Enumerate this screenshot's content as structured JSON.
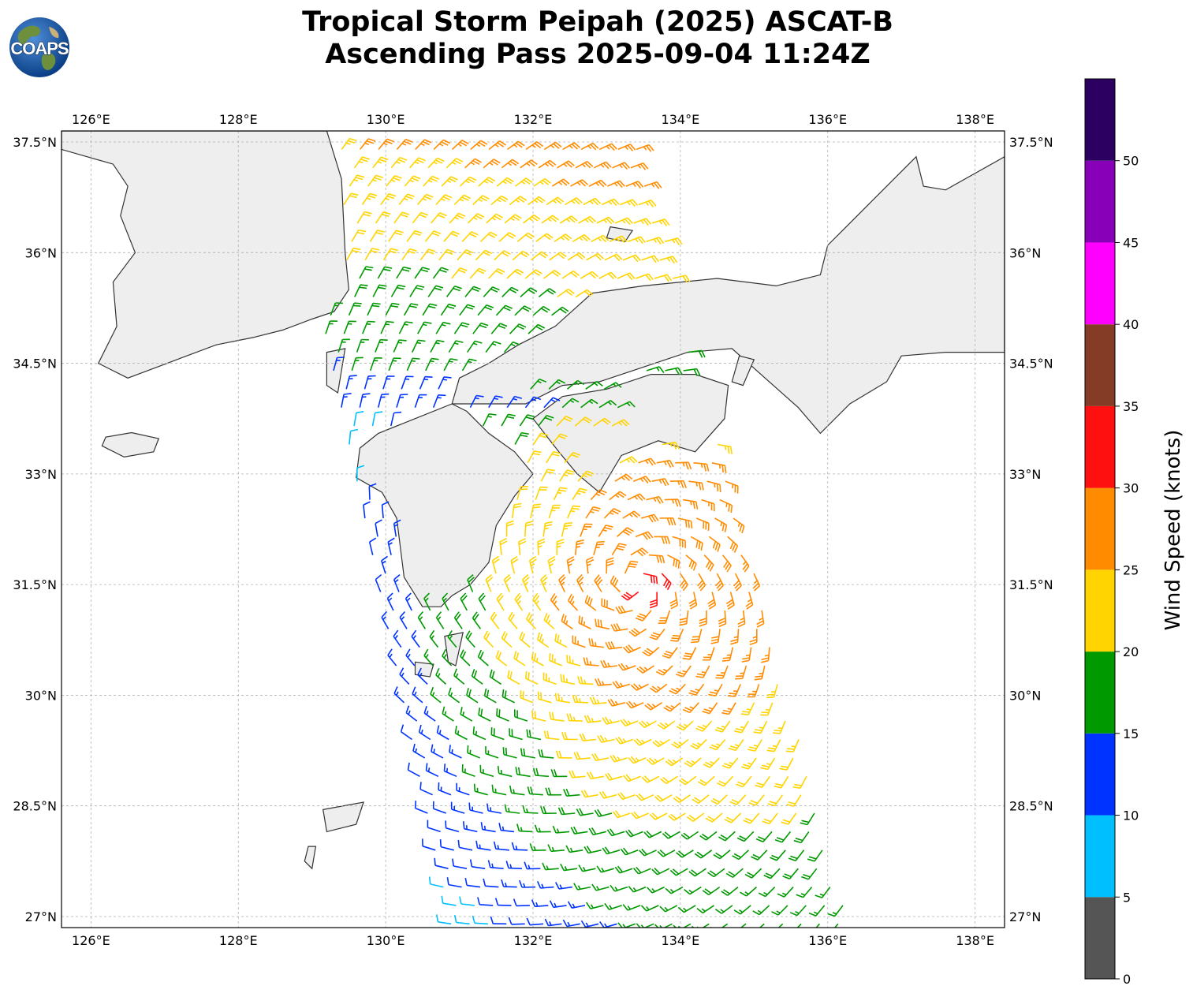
{
  "title": {
    "line1": "Tropical Storm Peipah (2025) ASCAT-B",
    "line2": "Ascending Pass 2025-09-04 11:24Z"
  },
  "logo": {
    "text": "COAPS",
    "icon": "globe-icon"
  },
  "map": {
    "lon_range": [
      125.6,
      138.4
    ],
    "lat_range": [
      26.85,
      37.65
    ],
    "lon_ticks": [
      "126°E",
      "128°E",
      "130°E",
      "132°E",
      "134°E",
      "136°E",
      "138°E"
    ],
    "lat_ticks": [
      "37.5°N",
      "36°N",
      "34.5°N",
      "33°N",
      "31.5°N",
      "30°N",
      "28.5°N",
      "27°N"
    ],
    "grid": true,
    "land_color": "#eeeeee",
    "coast_color": "#333333"
  },
  "colorbar": {
    "label": "Wind Speed (knots)",
    "ticks": [
      "0",
      "5",
      "10",
      "15",
      "20",
      "25",
      "30",
      "35",
      "40",
      "45",
      "50"
    ],
    "bins": [
      {
        "from": 0,
        "to": 5,
        "color": "#555555"
      },
      {
        "from": 5,
        "to": 10,
        "color": "#00bfff"
      },
      {
        "from": 10,
        "to": 15,
        "color": "#0033ff"
      },
      {
        "from": 15,
        "to": 20,
        "color": "#009900"
      },
      {
        "from": 20,
        "to": 25,
        "color": "#ffd400"
      },
      {
        "from": 25,
        "to": 30,
        "color": "#ff8c00"
      },
      {
        "from": 30,
        "to": 35,
        "color": "#ff1010"
      },
      {
        "from": 35,
        "to": 40,
        "color": "#843c27"
      },
      {
        "from": 40,
        "to": 45,
        "color": "#ff00ff"
      },
      {
        "from": 45,
        "to": 50,
        "color": "#8800b8"
      },
      {
        "from": 50,
        "to": 55,
        "color": "#2b0060"
      }
    ]
  },
  "storm_center": {
    "lon": 133.4,
    "lat": 31.5
  }
}
